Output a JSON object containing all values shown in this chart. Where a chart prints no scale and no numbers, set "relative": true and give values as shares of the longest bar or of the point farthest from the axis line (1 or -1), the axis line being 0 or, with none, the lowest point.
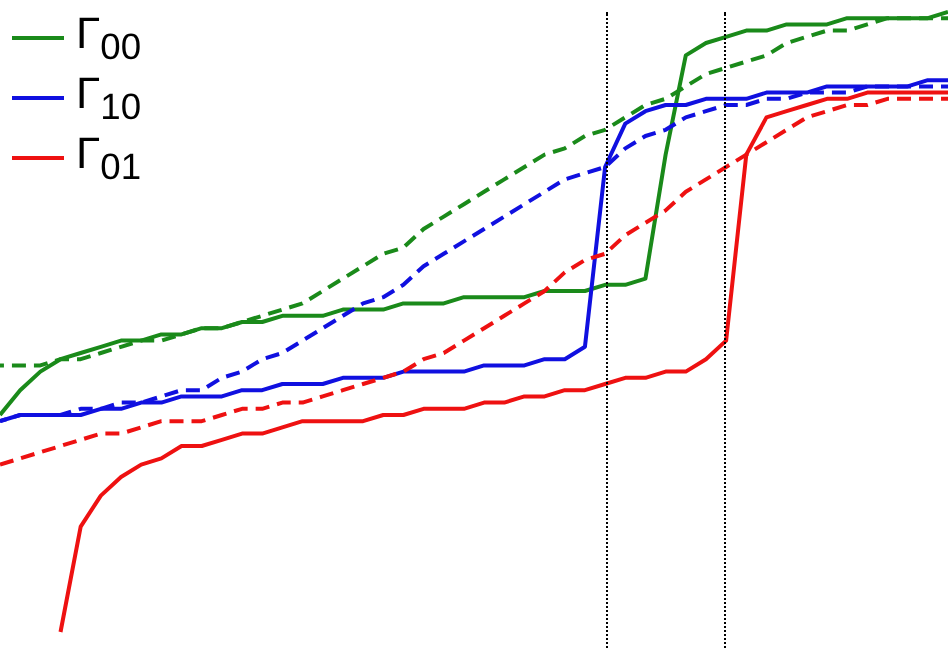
{
  "chart_data": {
    "type": "line",
    "relative": true,
    "legend": "top left",
    "grid": false,
    "marker": "none",
    "categories": [
      null,
      null,
      null,
      null,
      null,
      null,
      null,
      null,
      null,
      null,
      null,
      null,
      null,
      null,
      null,
      null,
      null,
      null,
      null,
      null,
      null,
      null,
      null,
      null,
      null,
      null,
      null,
      null,
      null,
      null,
      null,
      null,
      null,
      null,
      null,
      null,
      null,
      null,
      null,
      null,
      null,
      null,
      null,
      null,
      null,
      null,
      null,
      null
    ],
    "series": [
      {
        "name": "Γ$_{00}$",
        "color": "#1a8a1a",
        "line_style": "solid",
        "values": [
          0.35,
          0.39,
          0.42,
          0.44,
          0.45,
          0.46,
          0.47,
          0.47,
          0.48,
          0.48,
          0.49,
          0.49,
          0.5,
          0.5,
          0.51,
          0.51,
          0.51,
          0.52,
          0.52,
          0.52,
          0.53,
          0.53,
          0.53,
          0.54,
          0.54,
          0.54,
          0.54,
          0.55,
          0.55,
          0.55,
          0.56,
          0.56,
          0.57,
          0.77,
          0.93,
          0.95,
          0.96,
          0.97,
          0.97,
          0.98,
          0.98,
          0.98,
          0.99,
          0.99,
          0.99,
          0.99,
          0.99,
          1
        ]
      },
      {
        "color": "#1a8a1a",
        "line_style": "dashed",
        "values": [
          0.43,
          0.43,
          0.43,
          0.44,
          0.44,
          0.45,
          0.46,
          0.47,
          0.47,
          0.48,
          0.49,
          0.49,
          0.5,
          0.51,
          0.52,
          0.53,
          0.55,
          0.57,
          0.59,
          0.61,
          0.62,
          0.65,
          0.67,
          0.69,
          0.71,
          0.73,
          0.75,
          0.77,
          0.78,
          0.8,
          0.81,
          0.83,
          0.85,
          0.86,
          0.88,
          0.9,
          0.91,
          0.92,
          0.93,
          0.95,
          0.96,
          0.97,
          0.97,
          0.98,
          0.99,
          0.99,
          0.99,
          0.99
        ]
      },
      {
        "name": "Γ$_{10}$",
        "color": "#1010e0",
        "line_style": "solid",
        "values": [
          0.34,
          0.35,
          0.35,
          0.35,
          0.35,
          0.36,
          0.36,
          0.37,
          0.37,
          0.38,
          0.38,
          0.38,
          0.39,
          0.39,
          0.4,
          0.4,
          0.4,
          0.41,
          0.41,
          0.41,
          0.42,
          0.42,
          0.42,
          0.42,
          0.43,
          0.43,
          0.43,
          0.44,
          0.44,
          0.46,
          0.75,
          0.82,
          0.84,
          0.85,
          0.85,
          0.86,
          0.86,
          0.86,
          0.87,
          0.87,
          0.87,
          0.88,
          0.88,
          0.88,
          0.88,
          0.88,
          0.89,
          0.89
        ]
      },
      {
        "color": "#1010e0",
        "line_style": "dashed",
        "values": [
          0.34,
          0.35,
          0.35,
          0.35,
          0.36,
          0.36,
          0.37,
          0.37,
          0.38,
          0.39,
          0.39,
          0.41,
          0.42,
          0.44,
          0.45,
          0.47,
          0.49,
          0.51,
          0.53,
          0.54,
          0.56,
          0.59,
          0.61,
          0.63,
          0.65,
          0.67,
          0.69,
          0.71,
          0.73,
          0.74,
          0.75,
          0.78,
          0.8,
          0.81,
          0.83,
          0.84,
          0.85,
          0.85,
          0.86,
          0.86,
          0.87,
          0.87,
          0.87,
          0.88,
          0.88,
          0.88,
          0.88,
          0.88
        ]
      },
      {
        "name": "Γ$_{01}$",
        "color": "#ee1111",
        "line_style": "solid",
        "values": [
          null,
          null,
          null,
          0,
          0.17,
          0.22,
          0.25,
          0.27,
          0.28,
          0.3,
          0.3,
          0.31,
          0.32,
          0.32,
          0.33,
          0.34,
          0.34,
          0.34,
          0.34,
          0.35,
          0.35,
          0.36,
          0.36,
          0.36,
          0.37,
          0.37,
          0.38,
          0.38,
          0.39,
          0.39,
          0.4,
          0.41,
          0.41,
          0.42,
          0.42,
          0.44,
          0.47,
          0.77,
          0.83,
          0.84,
          0.85,
          0.86,
          0.86,
          0.87,
          0.87,
          0.87,
          0.87,
          0.87
        ]
      },
      {
        "color": "#ee1111",
        "line_style": "dashed",
        "values": [
          0.27,
          0.28,
          0.29,
          0.3,
          0.31,
          0.32,
          0.32,
          0.33,
          0.34,
          0.34,
          0.34,
          0.35,
          0.36,
          0.36,
          0.37,
          0.37,
          0.38,
          0.39,
          0.4,
          0.41,
          0.42,
          0.44,
          0.45,
          0.47,
          0.49,
          0.51,
          0.53,
          0.55,
          0.58,
          0.6,
          0.61,
          0.64,
          0.66,
          0.68,
          0.71,
          0.73,
          0.75,
          0.77,
          0.79,
          0.81,
          0.83,
          0.84,
          0.85,
          0.85,
          0.86,
          0.86,
          0.86,
          0.86
        ]
      }
    ]
  }
}
